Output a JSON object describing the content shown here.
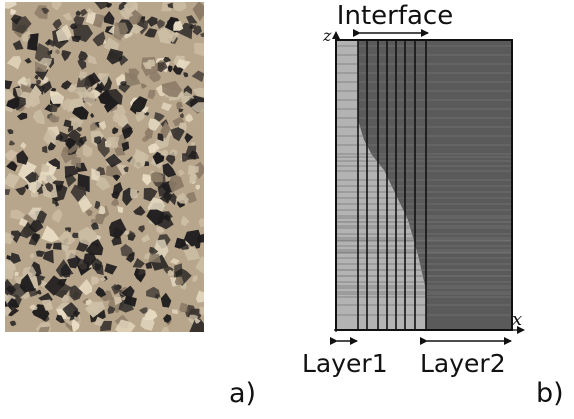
{
  "panel_a": {
    "label": "a)",
    "description_icon": "granular-material-photo",
    "colors": {
      "light": "#cdbfa6",
      "mid": "#8a7a66",
      "dark": "#1e1c1d"
    }
  },
  "panel_b": {
    "label": "b)",
    "title": "Interface",
    "axis_x": "x",
    "axis_z": "z",
    "layer1_label": "Layer1",
    "layer2_label": "Layer2",
    "colors": {
      "layer1": "#b3b3b3",
      "layer2": "#555555",
      "lines": "#111111",
      "faint": "#777777"
    }
  }
}
